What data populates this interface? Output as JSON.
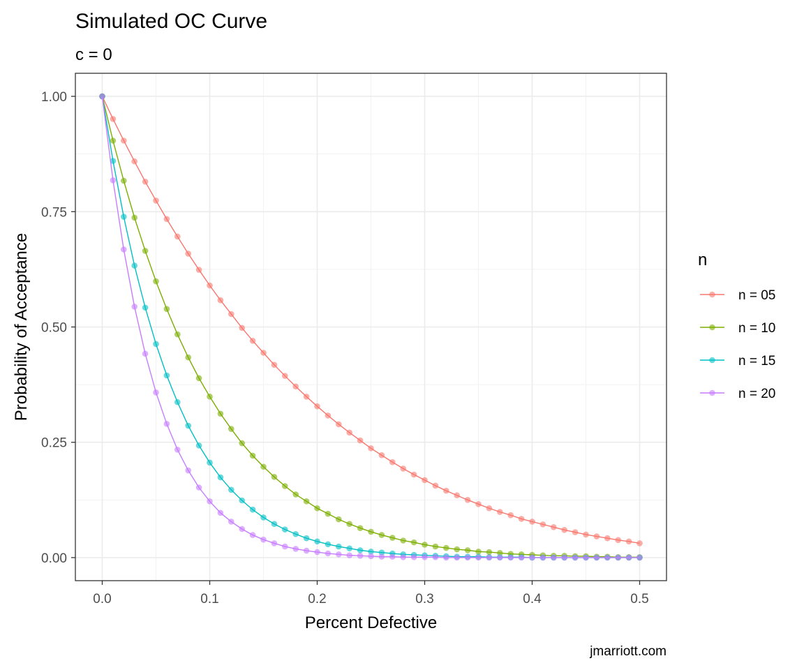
{
  "chart_data": {
    "type": "line",
    "title": "Simulated OC Curve",
    "subtitle": "c = 0",
    "xlabel": "Percent Defective",
    "ylabel": "Probability of Acceptance",
    "caption": "jmarriott.com",
    "xlim": [
      -0.025,
      0.525
    ],
    "ylim": [
      -0.05,
      1.05
    ],
    "x_ticks": [
      0,
      0.1,
      0.2,
      0.3,
      0.4,
      0.5
    ],
    "x_tick_labels": [
      "0.0",
      "0.1",
      "0.2",
      "0.3",
      "0.4",
      "0.5"
    ],
    "y_ticks": [
      0,
      0.25,
      0.5,
      0.75,
      1
    ],
    "y_tick_labels": [
      "0.00",
      "0.25",
      "0.50",
      "0.75",
      "1.00"
    ],
    "grid": true,
    "legend": {
      "title": "n",
      "position": "right",
      "entries": [
        "n = 05",
        "n = 10",
        "n = 15",
        "n = 20"
      ]
    },
    "x": [
      0.0,
      0.01,
      0.02,
      0.03,
      0.04,
      0.05,
      0.06,
      0.07,
      0.08,
      0.09,
      0.1,
      0.11,
      0.12,
      0.13,
      0.14,
      0.15,
      0.16,
      0.17,
      0.18,
      0.19,
      0.2,
      0.21,
      0.22,
      0.23,
      0.24,
      0.25,
      0.26,
      0.27,
      0.28,
      0.29,
      0.3,
      0.31,
      0.32,
      0.33,
      0.34,
      0.35,
      0.36,
      0.37,
      0.38,
      0.39,
      0.4,
      0.41,
      0.42,
      0.43,
      0.44,
      0.45,
      0.46,
      0.47,
      0.48,
      0.49,
      0.5
    ],
    "series": [
      {
        "name": "n = 05",
        "color": "#F8766D",
        "values": [
          1.0,
          0.951,
          0.904,
          0.859,
          0.815,
          0.774,
          0.734,
          0.696,
          0.659,
          0.624,
          0.59,
          0.558,
          0.528,
          0.498,
          0.47,
          0.444,
          0.418,
          0.394,
          0.371,
          0.349,
          0.328,
          0.308,
          0.289,
          0.271,
          0.254,
          0.237,
          0.222,
          0.207,
          0.193,
          0.18,
          0.168,
          0.156,
          0.145,
          0.135,
          0.125,
          0.116,
          0.107,
          0.099,
          0.092,
          0.084,
          0.078,
          0.072,
          0.066,
          0.06,
          0.055,
          0.05,
          0.046,
          0.042,
          0.038,
          0.035,
          0.031
        ]
      },
      {
        "name": "n = 10",
        "color": "#7CAE00",
        "values": [
          1.0,
          0.904,
          0.817,
          0.737,
          0.665,
          0.599,
          0.539,
          0.484,
          0.434,
          0.389,
          0.349,
          0.312,
          0.279,
          0.248,
          0.221,
          0.197,
          0.175,
          0.155,
          0.137,
          0.122,
          0.107,
          0.095,
          0.083,
          0.073,
          0.064,
          0.056,
          0.049,
          0.043,
          0.037,
          0.033,
          0.028,
          0.024,
          0.021,
          0.018,
          0.016,
          0.013,
          0.012,
          0.01,
          0.008,
          0.007,
          0.006,
          0.005,
          0.004,
          0.004,
          0.003,
          0.003,
          0.002,
          0.002,
          0.001,
          0.001,
          0.001
        ]
      },
      {
        "name": "n = 15",
        "color": "#00BFC4",
        "values": [
          1.0,
          0.86,
          0.739,
          0.633,
          0.542,
          0.463,
          0.395,
          0.337,
          0.286,
          0.243,
          0.206,
          0.174,
          0.147,
          0.124,
          0.104,
          0.087,
          0.073,
          0.061,
          0.051,
          0.042,
          0.035,
          0.029,
          0.024,
          0.02,
          0.016,
          0.013,
          0.011,
          0.009,
          0.007,
          0.006,
          0.005,
          0.004,
          0.003,
          0.002,
          0.002,
          0.002,
          0.001,
          0.001,
          0.001,
          0.001,
          0.0,
          0.0,
          0.0,
          0.0,
          0.0,
          0.0,
          0.0,
          0.0,
          0.0,
          0.0,
          0.0
        ]
      },
      {
        "name": "n = 20",
        "color": "#C77CFF",
        "values": [
          1.0,
          0.818,
          0.668,
          0.544,
          0.442,
          0.358,
          0.29,
          0.234,
          0.189,
          0.152,
          0.122,
          0.097,
          0.078,
          0.062,
          0.049,
          0.039,
          0.031,
          0.024,
          0.019,
          0.015,
          0.012,
          0.009,
          0.007,
          0.005,
          0.004,
          0.003,
          0.002,
          0.002,
          0.001,
          0.001,
          0.001,
          0.001,
          0.0,
          0.0,
          0.0,
          0.0,
          0.0,
          0.0,
          0.0,
          0.0,
          0.0,
          0.0,
          0.0,
          0.0,
          0.0,
          0.0,
          0.0,
          0.0,
          0.0,
          0.0,
          0.0
        ]
      }
    ]
  }
}
